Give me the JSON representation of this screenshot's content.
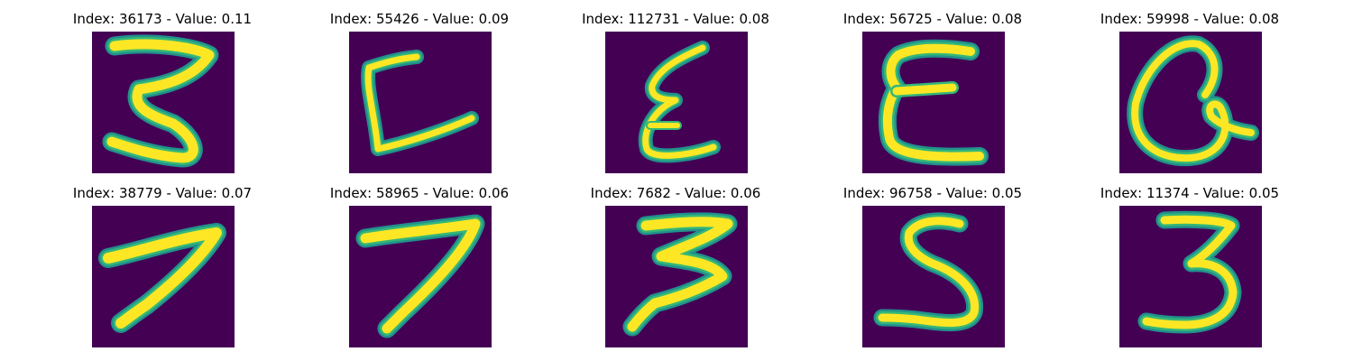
{
  "colors": {
    "background": "#440154",
    "stroke_core": "#fde725",
    "stroke_edge": "#35b779",
    "stroke_outer": "#21918c"
  },
  "panels": [
    {
      "title": "Index: 36173 - Value: 0.11",
      "index": 36173,
      "value": 0.11
    },
    {
      "title": "Index: 55426 - Value: 0.09",
      "index": 55426,
      "value": 0.09
    },
    {
      "title": "Index: 112731 - Value: 0.08",
      "index": 112731,
      "value": 0.08
    },
    {
      "title": "Index: 56725 - Value: 0.08",
      "index": 56725,
      "value": 0.08
    },
    {
      "title": "Index: 59998 - Value: 0.08",
      "index": 59998,
      "value": 0.08
    },
    {
      "title": "Index: 38779 - Value: 0.07",
      "index": 38779,
      "value": 0.07
    },
    {
      "title": "Index: 58965 - Value: 0.06",
      "index": 58965,
      "value": 0.06
    },
    {
      "title": "Index: 7682 - Value: 0.06",
      "index": 7682,
      "value": 0.06
    },
    {
      "title": "Index: 96758 - Value: 0.05",
      "index": 96758,
      "value": 0.05
    },
    {
      "title": "Index: 11374 - Value: 0.05",
      "index": 11374,
      "value": 0.05
    }
  ]
}
